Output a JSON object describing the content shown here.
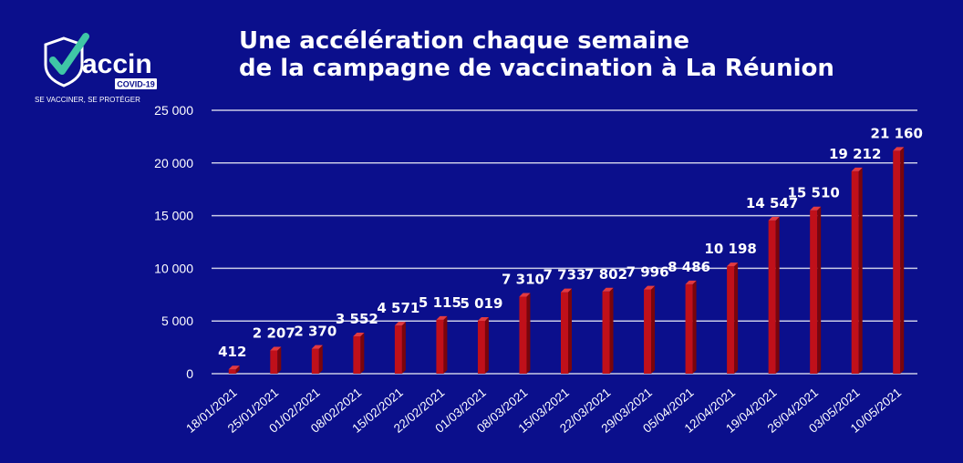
{
  "title_line1": "Une accélération chaque semaine",
  "title_line2": "de la campagne de vaccination à La Réunion",
  "logo": {
    "brand": "accin",
    "badge": "COVID-19",
    "tagline": "SE VACCINER, SE PROTÉGER",
    "icon": "shield-check-icon"
  },
  "colors": {
    "background": "#0b0f8c",
    "bar": "#c0101a",
    "bar_dark": "#7a050b",
    "bar_light": "#e33a40",
    "grid": "#c9cbe6",
    "text": "#ffffff",
    "check": "#3fc6a6"
  },
  "chart_data": {
    "type": "bar",
    "categories": [
      "18/01/2021",
      "25/01/2021",
      "01/02/2021",
      "08/02/2021",
      "15/02/2021",
      "22/02/2021",
      "01/03/2021",
      "08/03/2021",
      "15/03/2021",
      "22/03/2021",
      "29/03/2021",
      "05/04/2021",
      "12/04/2021",
      "19/04/2021",
      "26/04/2021",
      "03/05/2021",
      "10/05/2021"
    ],
    "values": [
      412,
      2207,
      2370,
      3552,
      4571,
      5115,
      5019,
      7310,
      7733,
      7802,
      7996,
      8486,
      10198,
      14547,
      15510,
      19212,
      21160
    ],
    "value_labels": [
      "412",
      "2 207",
      "2 370",
      "3 552",
      "4 571",
      "5 115",
      "5 019",
      "7 310",
      "7 733",
      "7 802",
      "7 996",
      "8 486",
      "10 198",
      "14 547",
      "15 510",
      "19 212",
      "21 160"
    ],
    "y_ticks": [
      0,
      5000,
      10000,
      15000,
      20000,
      25000
    ],
    "y_tick_labels": [
      "0",
      "5 000",
      "10 000",
      "15 000",
      "20 000",
      "25 000"
    ],
    "ylim": [
      0,
      25000
    ],
    "grid": true,
    "legend": "none"
  }
}
